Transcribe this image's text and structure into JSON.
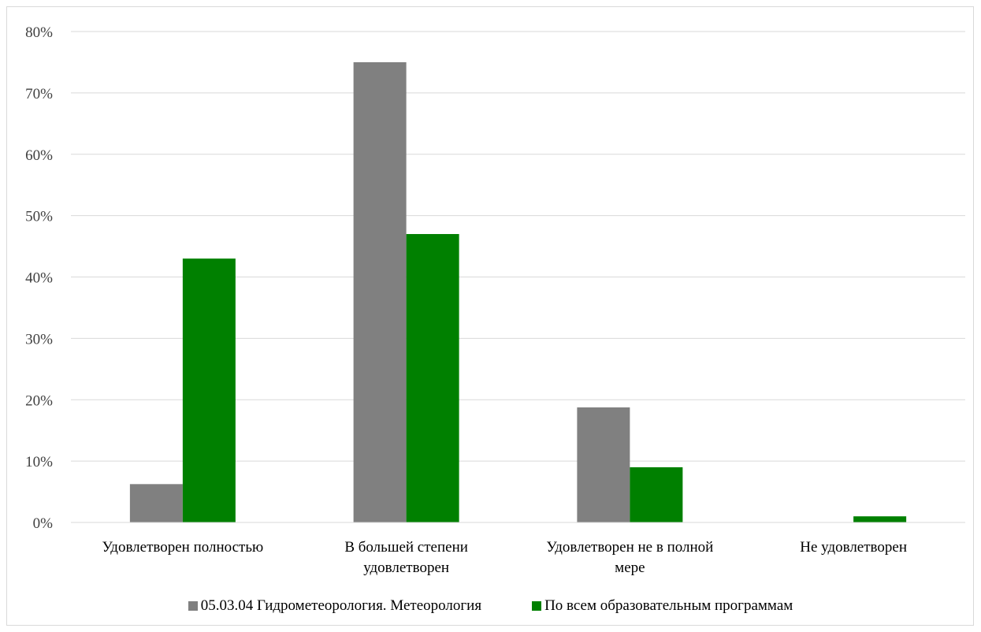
{
  "chart_data": {
    "type": "bar",
    "categories": [
      "Удовлетворен полностью",
      "В большей степени удовлетворен",
      "Удовлетворен не в полной мере",
      "Не удовлетворен"
    ],
    "series": [
      {
        "name": "05.03.04 Гидрометеорология. Метеорология",
        "color": "#808080",
        "values": [
          6.25,
          75,
          18.75,
          0
        ]
      },
      {
        "name": "По всем образовательным программам",
        "color": "#008000",
        "values": [
          43,
          47,
          9,
          1
        ]
      }
    ],
    "ylim": [
      0,
      80
    ],
    "yticks": [
      0,
      10,
      20,
      30,
      40,
      50,
      60,
      70,
      80
    ],
    "ytick_labels": [
      "0%",
      "10%",
      "20%",
      "30%",
      "40%",
      "50%",
      "60%",
      "70%",
      "80%"
    ],
    "grid": true,
    "legend": "bottom"
  }
}
